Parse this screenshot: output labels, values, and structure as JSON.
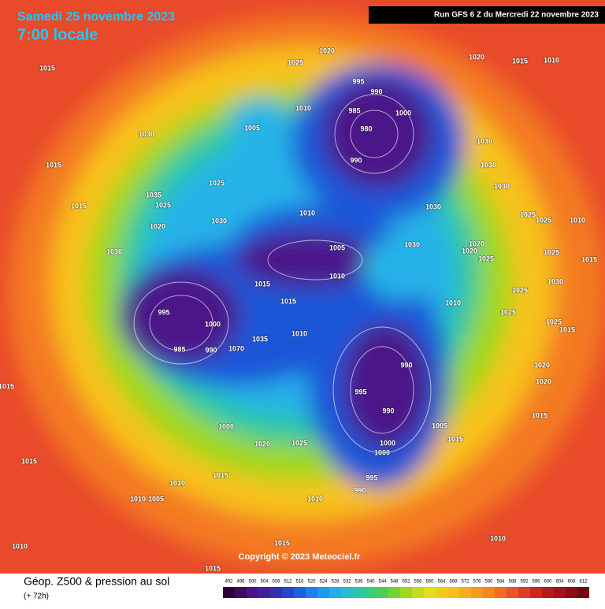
{
  "header": {
    "title": "Samedi 25 novembre 2023",
    "time": "7:00 locale",
    "run": "Run GFS 6 Z du Mercredi 22 novembre 2023"
  },
  "map": {
    "copyright": "Copyright © 2023 Meteociel.fr",
    "pressure_labels": [
      "1015",
      "1025",
      "1020",
      "1020",
      "1015",
      "1010",
      "995",
      "990",
      "985",
      "1000",
      "1010",
      "1005",
      "1030",
      "980",
      "990",
      "1030",
      "1030",
      "1015",
      "1025",
      "1035",
      "1025",
      "1015",
      "1030",
      "1030",
      "1010",
      "1030",
      "1020",
      "1025",
      "1025",
      "1010",
      "1030",
      "1005",
      "1030",
      "1020",
      "1020",
      "1025",
      "1025",
      "1010",
      "1015",
      "1015",
      "1010",
      "1030",
      "1015",
      "1025",
      "995",
      "1000",
      "1010",
      "1035",
      "985",
      "990",
      "1070",
      "1025",
      "1025",
      "1015",
      "990",
      "995",
      "990",
      "1015",
      "1020",
      "1020",
      "1000",
      "1015",
      "1005",
      "1020",
      "1025",
      "1000",
      "1000",
      "1015",
      "1015",
      "1015",
      "995",
      "990",
      "1010",
      "1010",
      "1005",
      "1010",
      "1010",
      "1010",
      "1015",
      "1015"
    ]
  },
  "legend": {
    "title": "Géop. Z500 & pression au sol",
    "subtitle": "(+ 72h)",
    "scale": [
      "492",
      "496",
      "500",
      "504",
      "508",
      "512",
      "516",
      "520",
      "524",
      "528",
      "532",
      "536",
      "540",
      "544",
      "548",
      "552",
      "556",
      "560",
      "564",
      "568",
      "572",
      "576",
      "580",
      "584",
      "588",
      "592",
      "596",
      "600",
      "604",
      "608",
      "612"
    ]
  }
}
